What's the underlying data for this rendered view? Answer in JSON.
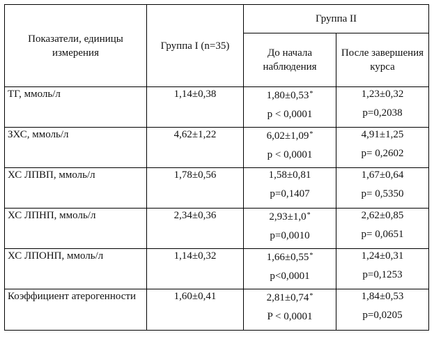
{
  "header": {
    "indicator": "Показатели, единицы измерения",
    "group1": "Группа I (n=35)",
    "group2": "Группа II",
    "before": "До начала наблюдения",
    "after": "После завершения курса"
  },
  "star_symbol": "*",
  "rows": [
    {
      "name": "ТГ, ммоль/л",
      "g1": "1,14±0,38",
      "before": "1,80±0,53",
      "before_star": "*",
      "before_p": "p < 0,0001",
      "after": "1,23±0,32",
      "after_p": "p=0,2038"
    },
    {
      "name": "ЗХС, ммоль/л",
      "g1": "4,62±1,22",
      "before": "6,02±1,09",
      "before_star": "*",
      "before_p": "p < 0,0001",
      "after": "4,91±1,25",
      "after_p": "p= 0,2602"
    },
    {
      "name": "ХС ЛПВП, ммоль/л",
      "g1": "1,78±0,56",
      "before": "1,58±0,81",
      "before_star": "",
      "before_p": "p=0,1407",
      "after": "1,67±0,64",
      "after_p": "p= 0,5350"
    },
    {
      "name": "ХС ЛПНП, ммоль/л",
      "g1": "2,34±0,36",
      "before": "2,93±1,0",
      "before_star": "*",
      "before_p": "p=0,0010",
      "after": "2,62±0,85",
      "after_p": "p= 0,0651"
    },
    {
      "name": "ХС ЛПОНП, ммоль/л",
      "g1": "1,14±0,32",
      "before": "1,66±0,55",
      "before_star": "*",
      "before_p": "p<0,0001",
      "after": "1,24±0,31",
      "after_p": "p=0,1253"
    },
    {
      "name": "Коэффициент атерогенности",
      "g1": "1,60±0,41",
      "before": "2,81±0,74",
      "before_star": "*",
      "before_p": "P < 0,0001",
      "after": "1,84±0,53",
      "after_p": "p=0,0205"
    }
  ]
}
